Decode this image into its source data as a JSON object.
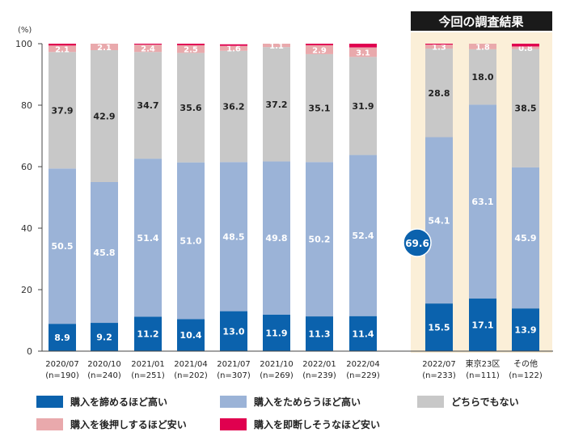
{
  "colors": {
    "give_up": "#0b62ad",
    "hesitate": "#9bb3d7",
    "neither": "#c8c8c8",
    "push": "#e9a9ac",
    "decide": "#e0004f",
    "highlight_bg": "#fbefd8",
    "highlight_title_bg": "#1a1a1a",
    "callout": "#0b62ad"
  },
  "highlight_title": "今回の調査結果",
  "callout_value": "69.6",
  "chart_data": {
    "type": "bar",
    "stacked": true,
    "ylabel": "(%)",
    "ylim": [
      0,
      100
    ],
    "yticks": [
      0,
      20,
      40,
      60,
      80,
      100
    ],
    "grid": false,
    "legend_placement": "bottom",
    "categories": [
      {
        "label": "2020/07",
        "n": "(n=190)"
      },
      {
        "label": "2020/10",
        "n": "(n=240)"
      },
      {
        "label": "2021/01",
        "n": "(n=251)"
      },
      {
        "label": "2021/04",
        "n": "(n=202)"
      },
      {
        "label": "2021/07",
        "n": "(n=307)"
      },
      {
        "label": "2021/10",
        "n": "(n=269)"
      },
      {
        "label": "2022/01",
        "n": "(n=239)"
      },
      {
        "label": "2022/04",
        "n": "(n=229)"
      },
      {
        "label": "2022/07",
        "n": "(n=233)"
      },
      {
        "label": "東京23区",
        "n": "(n=111)"
      },
      {
        "label": "その他",
        "n": "(n=122)"
      }
    ],
    "series": [
      {
        "key": "give_up",
        "name": "購入を諦めるほど高い",
        "values": [
          8.9,
          9.2,
          11.2,
          10.4,
          13.0,
          11.9,
          11.3,
          11.4,
          15.5,
          17.1,
          13.9
        ],
        "labels": [
          "8.9",
          "9.2",
          "11.2",
          "10.4",
          "13.0",
          "11.9",
          "11.3",
          "11.4",
          "15.5",
          "17.1",
          "13.9"
        ]
      },
      {
        "key": "hesitate",
        "name": "購入をためらうほど高い",
        "values": [
          50.5,
          45.8,
          51.4,
          51.0,
          48.5,
          49.8,
          50.2,
          52.4,
          54.1,
          63.1,
          45.9
        ],
        "labels": [
          "50.5",
          "45.8",
          "51.4",
          "51.0",
          "48.5",
          "49.8",
          "50.2",
          "52.4",
          "54.1",
          "63.1",
          "45.9"
        ]
      },
      {
        "key": "neither",
        "name": "どちらでもない",
        "values": [
          37.9,
          42.9,
          34.7,
          35.6,
          36.2,
          37.2,
          35.1,
          31.9,
          28.8,
          18.0,
          38.5
        ],
        "labels": [
          "37.9",
          "42.9",
          "34.7",
          "35.6",
          "36.2",
          "37.2",
          "35.1",
          "31.9",
          "28.8",
          "18.0",
          "38.5"
        ]
      },
      {
        "key": "push",
        "name": "購入を後押しするほど安い",
        "values": [
          2.1,
          2.1,
          2.4,
          2.5,
          1.6,
          1.1,
          2.9,
          3.1,
          1.3,
          1.8,
          0.8
        ],
        "labels": [
          "2.1",
          "2.1",
          "2.4",
          "2.5",
          "1.6",
          "1.1",
          "2.9",
          "3.1",
          "1.3",
          "1.8",
          "0.8"
        ]
      },
      {
        "key": "decide",
        "name": "購入を即断しそうなほど安い",
        "values": [
          0.6,
          0.0,
          0.3,
          0.5,
          0.5,
          0.0,
          0.5,
          1.2,
          0.3,
          0.0,
          0.9
        ],
        "labels": [
          "",
          "",
          "",
          "",
          "",
          "",
          "",
          "",
          "",
          "",
          ""
        ]
      }
    ]
  }
}
